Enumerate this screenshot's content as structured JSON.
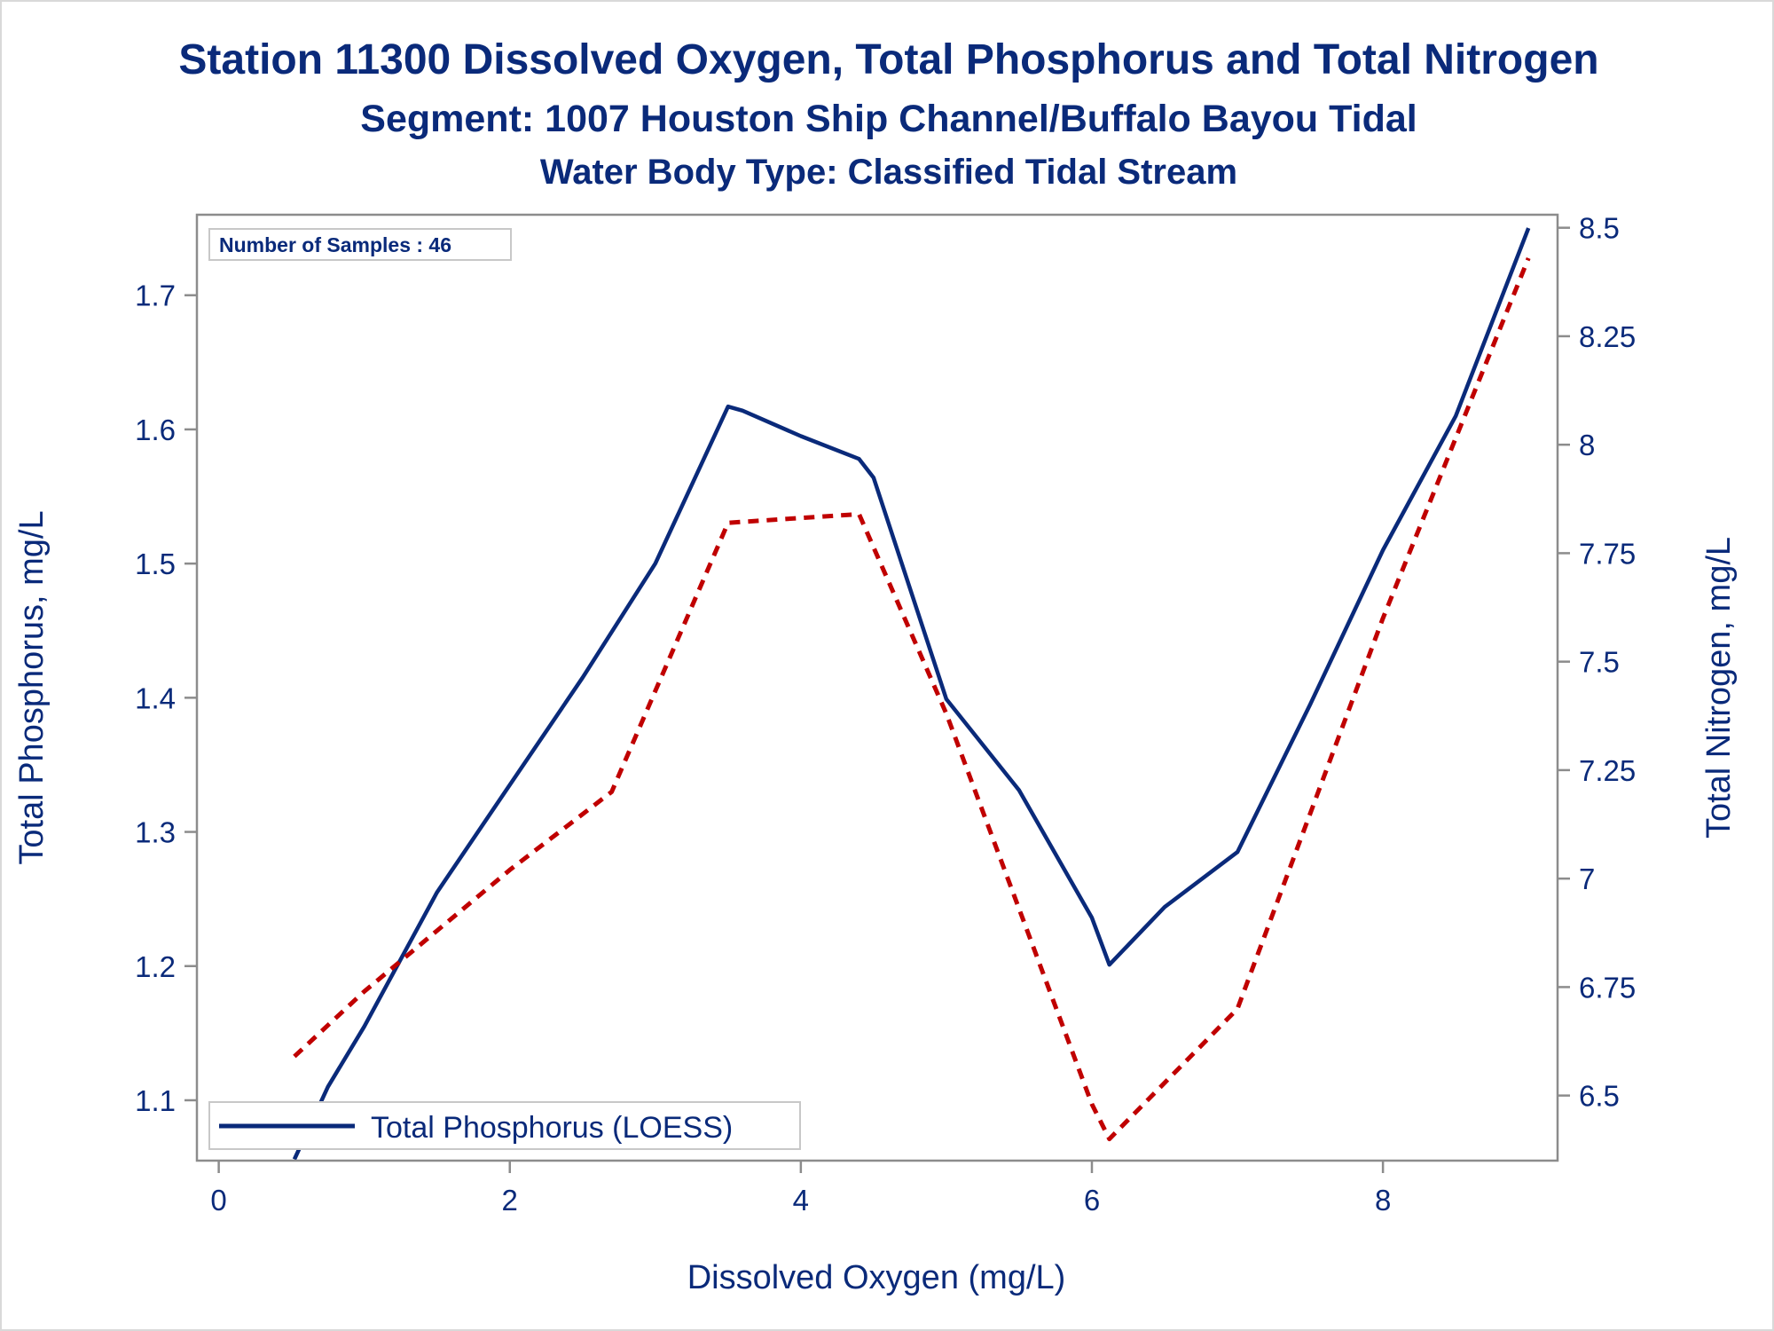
{
  "chart_data": {
    "type": "line",
    "title": "Station 11300  Dissolved Oxygen, Total Phosphorus and Total Nitrogen",
    "subtitle": "Segment: 1007  Houston Ship Channel/Buffalo Bayou Tidal",
    "subtitle2": "Water Body Type: Classified Tidal Stream",
    "xlabel": "Dissolved Oxygen (mg/L)",
    "ylabel": "Total Phosphorus, mg/L",
    "y2label": "Total Nitrogen, mg/L",
    "xlim": [
      -0.15,
      9.2
    ],
    "xticks": [
      0,
      2,
      4,
      6,
      8
    ],
    "ylim": [
      1.055,
      1.76
    ],
    "yticks": [
      1.1,
      1.2,
      1.3,
      1.4,
      1.5,
      1.6,
      1.7
    ],
    "y2lim": [
      6.35,
      8.53
    ],
    "y2ticks": [
      "8.5",
      "8.25",
      "8",
      "7.75",
      "7.5",
      "7.25",
      "7",
      "6.75",
      "6.5"
    ],
    "grid": false,
    "legend_position": "bottom-left",
    "inset_label": "Number of Samples : 46",
    "series": [
      {
        "name": "Total Phosphorus (LOESS)",
        "axis": "left",
        "style": "solid",
        "color": "#0a2a7a",
        "x": [
          0.52,
          0.75,
          1.0,
          1.25,
          1.5,
          2.0,
          2.5,
          3.0,
          3.5,
          3.6,
          4.0,
          4.4,
          4.5,
          5.0,
          5.5,
          6.0,
          6.12,
          6.5,
          7.0,
          7.5,
          8.0,
          8.5,
          9.0
        ],
        "y": [
          1.056,
          1.11,
          1.155,
          1.205,
          1.255,
          1.335,
          1.415,
          1.5,
          1.617,
          1.614,
          1.595,
          1.578,
          1.564,
          1.399,
          1.331,
          1.236,
          1.201,
          1.244,
          1.285,
          1.395,
          1.51,
          1.61,
          1.75
        ]
      },
      {
        "name": "Total Nitrogen",
        "axis": "right",
        "style": "dashed",
        "color": "#c00000",
        "x": [
          0.52,
          1.0,
          2.0,
          2.7,
          3.5,
          4.4,
          5.0,
          6.0,
          6.12,
          7.0,
          8.0,
          9.0
        ],
        "y": [
          6.59,
          6.74,
          7.02,
          7.2,
          7.82,
          7.84,
          7.38,
          6.48,
          6.4,
          6.7,
          7.6,
          8.43
        ]
      }
    ]
  }
}
